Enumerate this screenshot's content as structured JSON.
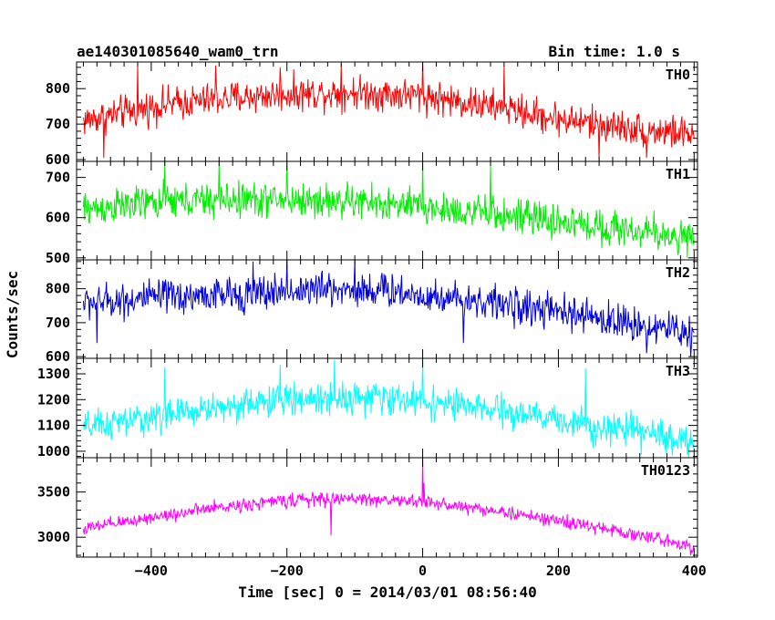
{
  "header": {
    "left_title": "ae140301085640_wam0_trn",
    "right_title": "Bin time: 1.0 s"
  },
  "chart_data": {
    "type": "line",
    "xlabel": "Time [sec] 0 = 2014/03/01 08:56:40",
    "ylabel": "Counts/sec",
    "xlim": [
      -510,
      405
    ],
    "x_ticks": [
      -400,
      -200,
      0,
      200,
      400
    ],
    "x_tick_labels": [
      "−400",
      "−200",
      "0",
      "200",
      "400"
    ],
    "bin_time_s": 1.0,
    "grid": false,
    "series": [
      {
        "name": "TH0",
        "color": "#ff0000",
        "ylim": [
          595,
          875
        ],
        "y_ticks": [
          600,
          700,
          800
        ],
        "trend": [
          [
            -500,
            710
          ],
          [
            -380,
            755
          ],
          [
            -300,
            770
          ],
          [
            -200,
            785
          ],
          [
            -100,
            790
          ],
          [
            0,
            780
          ],
          [
            100,
            750
          ],
          [
            200,
            715
          ],
          [
            300,
            690
          ],
          [
            400,
            670
          ]
        ],
        "noise": 35,
        "spikes": [
          [
            -470,
            605
          ],
          [
            -420,
            870
          ],
          [
            -305,
            865
          ],
          [
            -210,
            860
          ],
          [
            -120,
            870
          ],
          [
            0,
            875
          ],
          [
            120,
            865
          ],
          [
            260,
            600
          ],
          [
            330,
            605
          ]
        ]
      },
      {
        "name": "TH1",
        "color": "#00ee00",
        "ylim": [
          495,
          740
        ],
        "y_ticks": [
          500,
          600,
          700
        ],
        "trend": [
          [
            -500,
            620
          ],
          [
            -380,
            640
          ],
          [
            -250,
            645
          ],
          [
            -100,
            640
          ],
          [
            0,
            625
          ],
          [
            100,
            610
          ],
          [
            200,
            590
          ],
          [
            300,
            570
          ],
          [
            400,
            550
          ]
        ],
        "noise": 32,
        "spikes": [
          [
            -380,
            738
          ],
          [
            -300,
            735
          ],
          [
            -200,
            738
          ],
          [
            0,
            738
          ],
          [
            100,
            730
          ],
          [
            390,
            500
          ]
        ]
      },
      {
        "name": "TH2",
        "color": "#0000dd",
        "ylim": [
          595,
          885
        ],
        "y_ticks": [
          600,
          700,
          800
        ],
        "trend": [
          [
            -500,
            760
          ],
          [
            -380,
            775
          ],
          [
            -250,
            785
          ],
          [
            -150,
            800
          ],
          [
            -50,
            795
          ],
          [
            0,
            780
          ],
          [
            100,
            760
          ],
          [
            200,
            730
          ],
          [
            300,
            700
          ],
          [
            400,
            670
          ]
        ],
        "noise": 38,
        "spikes": [
          [
            -480,
            640
          ],
          [
            -250,
            880
          ],
          [
            -200,
            885
          ],
          [
            -100,
            885
          ],
          [
            60,
            640
          ],
          [
            330,
            610
          ],
          [
            395,
            600
          ]
        ]
      },
      {
        "name": "TH3",
        "color": "#00ffff",
        "ylim": [
          975,
          1360
        ],
        "y_ticks": [
          1000,
          1100,
          1200,
          1300
        ],
        "trend": [
          [
            -500,
            1090
          ],
          [
            -400,
            1130
          ],
          [
            -300,
            1170
          ],
          [
            -200,
            1200
          ],
          [
            -100,
            1210
          ],
          [
            0,
            1195
          ],
          [
            100,
            1160
          ],
          [
            200,
            1120
          ],
          [
            300,
            1080
          ],
          [
            400,
            1040
          ]
        ],
        "noise": 45,
        "spikes": [
          [
            -380,
            1325
          ],
          [
            -210,
            1335
          ],
          [
            -130,
            1355
          ],
          [
            0,
            1355
          ],
          [
            240,
            1320
          ],
          [
            390,
            985
          ]
        ]
      },
      {
        "name": "TH0123",
        "color": "#ff00ff",
        "ylim": [
          2780,
          3880
        ],
        "y_ticks": [
          3000,
          3500
        ],
        "trend": [
          [
            -500,
            3090
          ],
          [
            -400,
            3220
          ],
          [
            -300,
            3330
          ],
          [
            -200,
            3410
          ],
          [
            -100,
            3430
          ],
          [
            0,
            3390
          ],
          [
            100,
            3300
          ],
          [
            200,
            3180
          ],
          [
            300,
            3050
          ],
          [
            400,
            2900
          ]
        ],
        "noise": 55,
        "spikes": [
          [
            -135,
            3020
          ],
          [
            0,
            3870
          ],
          [
            2,
            3600
          ],
          [
            395,
            2800
          ]
        ]
      }
    ]
  }
}
